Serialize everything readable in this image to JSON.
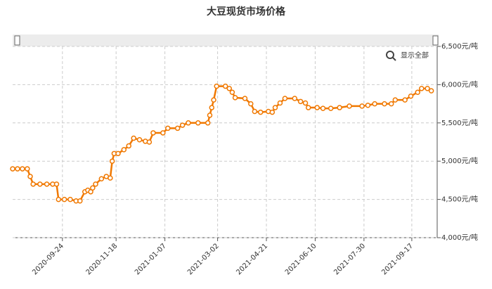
{
  "chart_data": {
    "type": "line",
    "title": "大豆现货市场价格",
    "reset_zoom": "显示全部",
    "color": "#f07800",
    "grid": true,
    "xlim": [
      "2020-08-04",
      "2021-10-13"
    ],
    "xticks": [
      "2020-09-24",
      "2020-11-18",
      "2021-01-07",
      "2021-03-02",
      "2021-04-21",
      "2021-06-10",
      "2021-07-30",
      "2021-09-17"
    ],
    "ylim": [
      4000,
      6500
    ],
    "yticks": [
      {
        "value": 4000,
        "label": "4,000元/吨"
      },
      {
        "value": 4500,
        "label": "4,500元/吨"
      },
      {
        "value": 5000,
        "label": "5,000元/吨"
      },
      {
        "value": 5500,
        "label": "5,500元/吨"
      },
      {
        "value": 6000,
        "label": "6,000元/吨"
      },
      {
        "value": 6500,
        "label": "6,500元/吨"
      }
    ],
    "x": [
      "2020-08-04",
      "2020-08-09",
      "2020-08-14",
      "2020-08-19",
      "2020-08-22",
      "2020-08-25",
      "2020-09-01",
      "2020-09-08",
      "2020-09-14",
      "2020-09-18",
      "2020-09-20",
      "2020-09-26",
      "2020-10-02",
      "2020-10-08",
      "2020-10-12",
      "2020-10-17",
      "2020-10-20",
      "2020-10-23",
      "2020-10-25",
      "2020-10-28",
      "2020-11-03",
      "2020-11-08",
      "2020-11-12",
      "2020-11-14",
      "2020-11-16",
      "2020-11-20",
      "2020-11-26",
      "2020-12-01",
      "2020-12-06",
      "2020-12-12",
      "2020-12-18",
      "2020-12-22",
      "2020-12-26",
      "2021-01-05",
      "2021-01-10",
      "2021-01-20",
      "2021-01-25",
      "2021-01-31",
      "2021-02-10",
      "2021-02-20",
      "2021-02-22",
      "2021-02-24",
      "2021-02-26",
      "2021-03-01",
      "2021-03-10",
      "2021-03-14",
      "2021-03-17",
      "2021-03-20",
      "2021-03-30",
      "2021-04-05",
      "2021-04-09",
      "2021-04-15",
      "2021-04-23",
      "2021-04-27",
      "2021-04-30",
      "2021-05-05",
      "2021-05-10",
      "2021-05-20",
      "2021-05-26",
      "2021-05-31",
      "2021-06-03",
      "2021-06-12",
      "2021-06-18",
      "2021-06-26",
      "2021-07-05",
      "2021-07-15",
      "2021-07-28",
      "2021-08-03",
      "2021-08-10",
      "2021-08-20",
      "2021-08-27",
      "2021-08-31",
      "2021-09-10",
      "2021-09-16",
      "2021-09-23",
      "2021-09-27",
      "2021-10-03",
      "2021-10-07"
    ],
    "values": [
      4900,
      4900,
      4900,
      4900,
      4800,
      4700,
      4700,
      4700,
      4700,
      4700,
      4500,
      4500,
      4500,
      4480,
      4480,
      4600,
      4620,
      4600,
      4650,
      4700,
      4770,
      4800,
      4780,
      5000,
      5100,
      5100,
      5150,
      5200,
      5300,
      5280,
      5260,
      5250,
      5370,
      5370,
      5430,
      5430,
      5470,
      5500,
      5500,
      5500,
      5600,
      5700,
      5800,
      5980,
      5980,
      5950,
      5900,
      5830,
      5820,
      5750,
      5650,
      5640,
      5650,
      5640,
      5700,
      5760,
      5820,
      5820,
      5780,
      5760,
      5700,
      5700,
      5690,
      5690,
      5700,
      5720,
      5720,
      5730,
      5750,
      5750,
      5750,
      5800,
      5800,
      5850,
      5900,
      5950,
      5950,
      5920
    ]
  }
}
